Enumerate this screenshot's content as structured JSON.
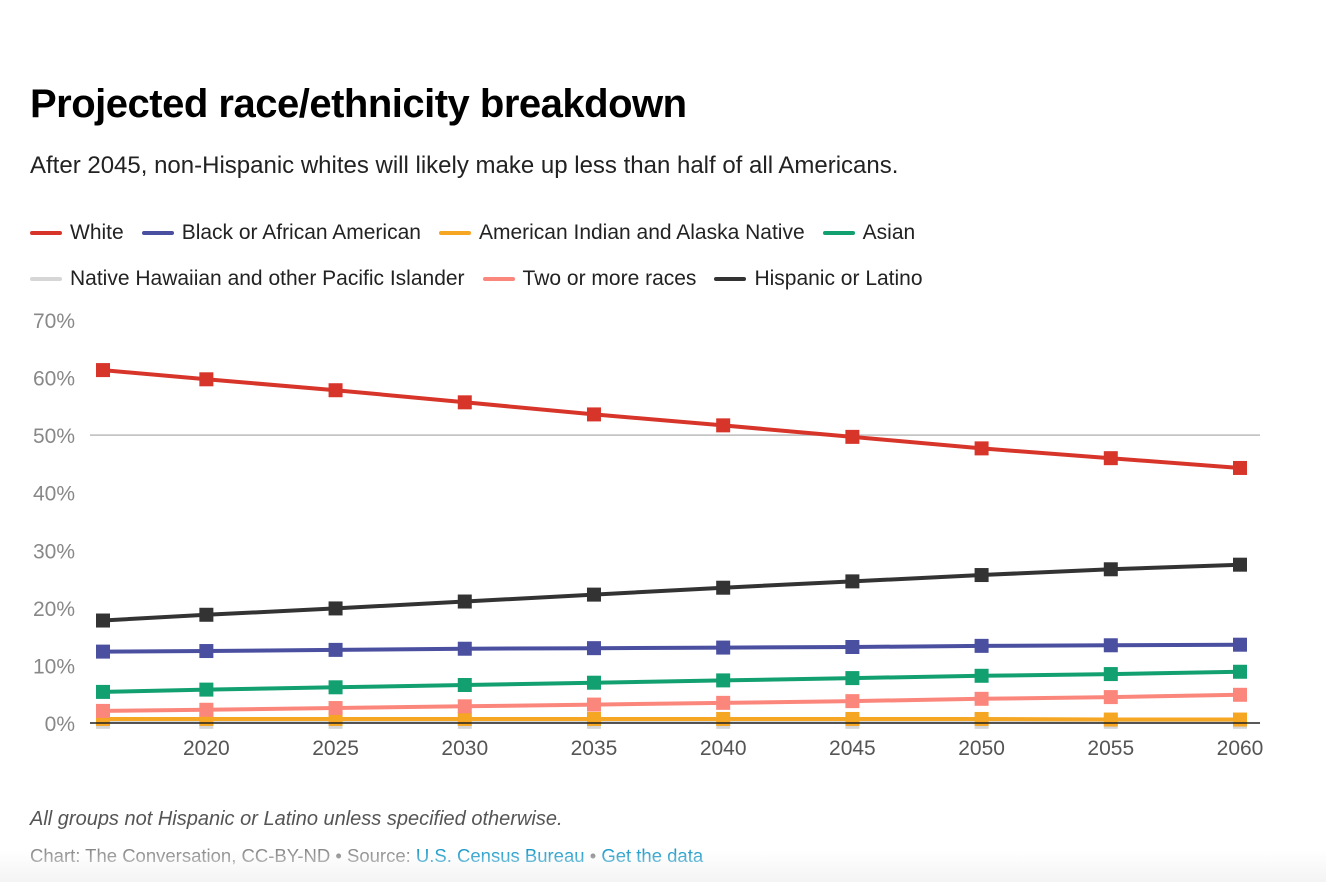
{
  "header": {
    "title": "Projected race/ethnicity breakdown",
    "subtitle": "After 2045, non-Hispanic whites will likely make up less than half of all Americans."
  },
  "footer": {
    "note": "All groups not Hispanic or Latino unless specified otherwise.",
    "credit": "Chart: The Conversation, CC-BY-ND",
    "separator": " • ",
    "source_prefix": "Source: ",
    "source_link": "U.S. Census Bureau",
    "data_link": "Get the data"
  },
  "chart_data": {
    "type": "line",
    "title": "Projected race/ethnicity breakdown",
    "subtitle": "After 2045, non-Hispanic whites will likely make up less than half of all Americans.",
    "xlabel": "",
    "ylabel": "",
    "x": [
      2016,
      2020,
      2025,
      2030,
      2035,
      2040,
      2045,
      2050,
      2055,
      2060
    ],
    "x_ticks": [
      2020,
      2025,
      2030,
      2035,
      2040,
      2045,
      2050,
      2055,
      2060
    ],
    "x_tick_labels": [
      "2020",
      "2025",
      "2030",
      "2035",
      "2040",
      "2045",
      "2050",
      "2055",
      "2060"
    ],
    "ylim": [
      0,
      70
    ],
    "y_ticks": [
      0,
      10,
      20,
      30,
      40,
      50,
      60,
      70
    ],
    "y_tick_labels": [
      "0%",
      "10%",
      "20%",
      "30%",
      "40%",
      "50%",
      "60%",
      "70%"
    ],
    "gridlines": [
      50
    ],
    "legend_position": "top",
    "marker": "square",
    "series": [
      {
        "name": "White",
        "color": "#d8352a",
        "values": [
          61.3,
          59.7,
          57.8,
          55.7,
          53.6,
          51.7,
          49.7,
          47.7,
          46.0,
          44.3
        ]
      },
      {
        "name": "Black or African American",
        "color": "#4a4fa0",
        "values": [
          12.4,
          12.5,
          12.7,
          12.9,
          13.0,
          13.1,
          13.2,
          13.4,
          13.5,
          13.6
        ]
      },
      {
        "name": "American Indian and Alaska Native",
        "color": "#f5a623",
        "values": [
          0.7,
          0.7,
          0.7,
          0.7,
          0.7,
          0.7,
          0.7,
          0.7,
          0.6,
          0.6
        ]
      },
      {
        "name": "Asian",
        "color": "#12a070",
        "values": [
          5.4,
          5.8,
          6.2,
          6.6,
          7.0,
          7.4,
          7.8,
          8.2,
          8.5,
          8.9
        ]
      },
      {
        "name": "Native Hawaiian and other Pacific Islander",
        "color": "#d6d6d6",
        "values": [
          0.2,
          0.2,
          0.2,
          0.2,
          0.2,
          0.2,
          0.2,
          0.2,
          0.2,
          0.2
        ]
      },
      {
        "name": "Two or more races",
        "color": "#fb877c",
        "values": [
          2.1,
          2.3,
          2.6,
          2.9,
          3.2,
          3.5,
          3.8,
          4.2,
          4.5,
          4.9
        ]
      },
      {
        "name": "Hispanic or Latino",
        "color": "#333333",
        "values": [
          17.8,
          18.8,
          19.9,
          21.1,
          22.3,
          23.5,
          24.6,
          25.7,
          26.7,
          27.5
        ]
      }
    ]
  }
}
